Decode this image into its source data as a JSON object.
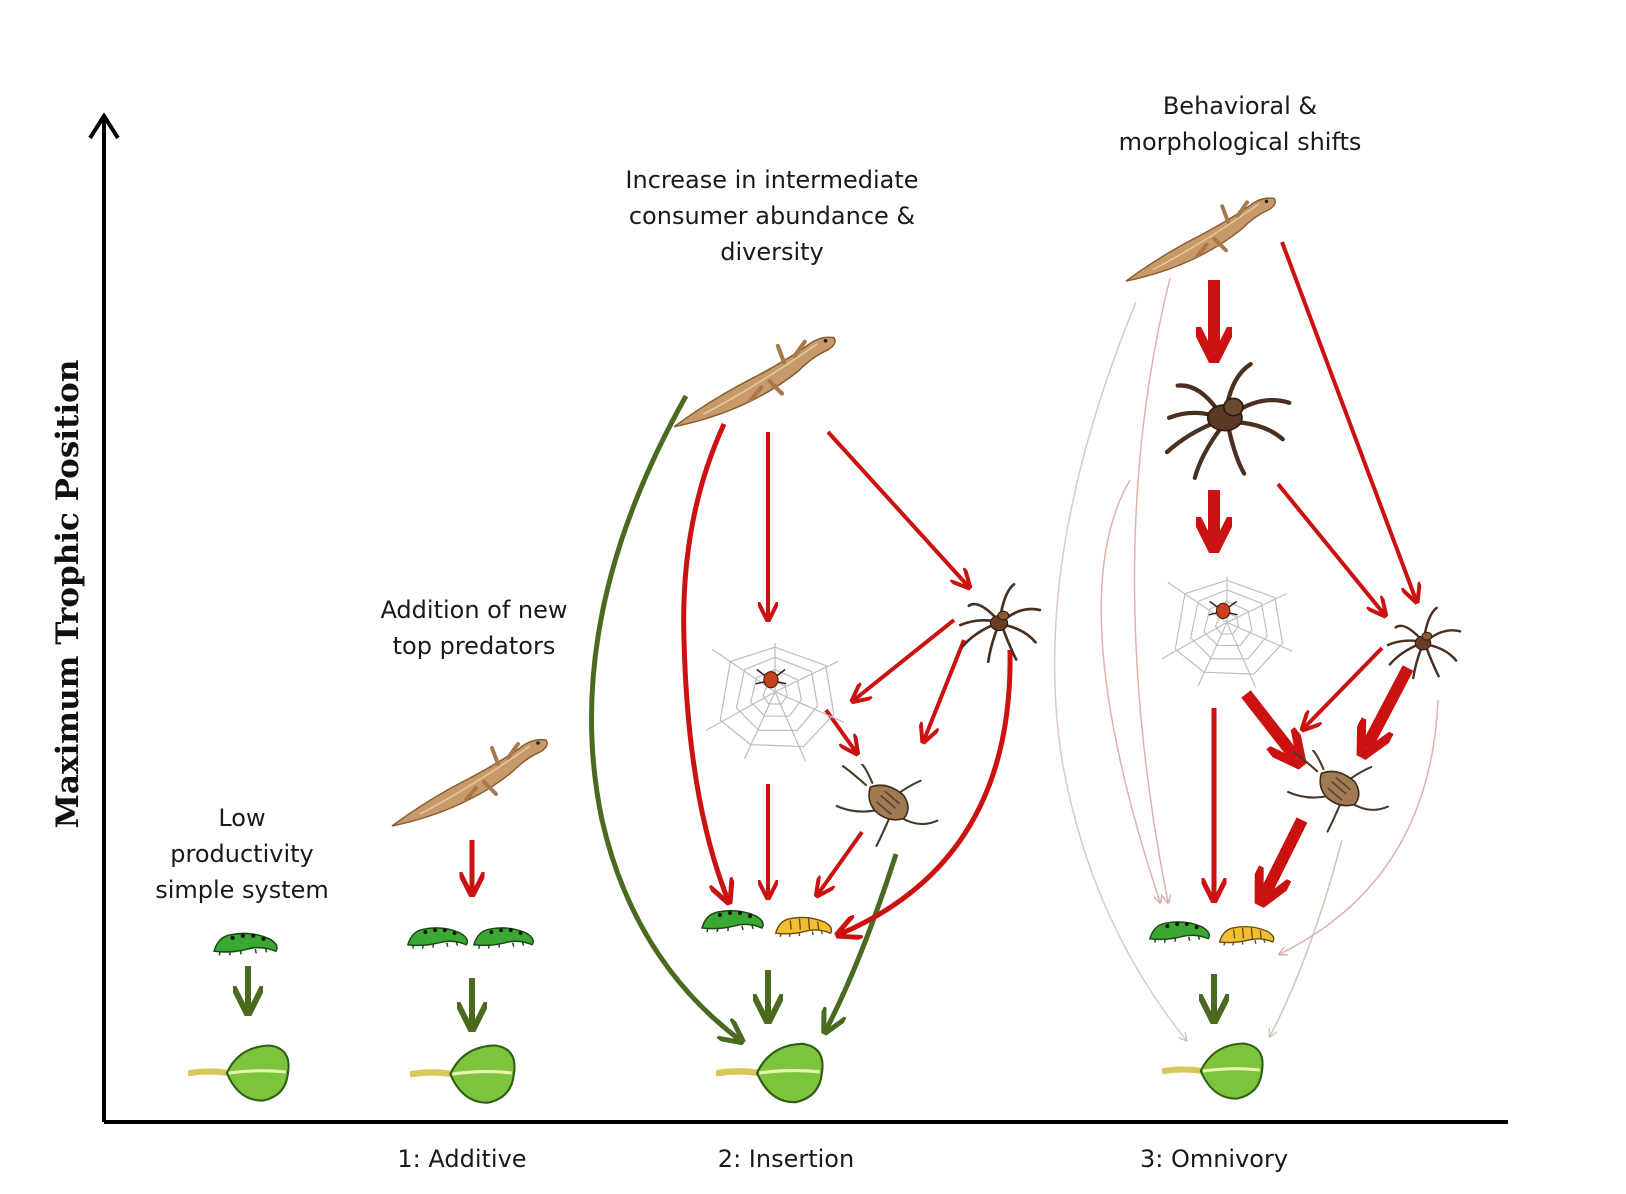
{
  "axis": {
    "y_label": "Maximum Trophic Position"
  },
  "categories": [
    {
      "id": "base",
      "label": "",
      "annotation": [
        "Low",
        "productivity",
        "simple system"
      ]
    },
    {
      "id": "additive",
      "label": "1: Additive",
      "annotation": [
        "Addition of new",
        "top predators"
      ]
    },
    {
      "id": "insertion",
      "label": "2: Insertion",
      "annotation": [
        "Increase in intermediate",
        "consumer abundance &",
        "diversity"
      ]
    },
    {
      "id": "omnivory",
      "label": "3: Omnivory",
      "annotation": [
        "Behavioral  &",
        "morphological shifts"
      ]
    }
  ],
  "colors": {
    "predation_arrow": "#cc1111",
    "herbivory_arrow": "#4a6b1f",
    "weak_arrow": "#e2b8b8",
    "axis": "#000000"
  },
  "icons": [
    "lizard-icon",
    "wolf-spider-icon",
    "web-spider-icon",
    "cricket-icon",
    "green-caterpillar-icon",
    "yellow-caterpillar-icon",
    "leaf-icon"
  ]
}
